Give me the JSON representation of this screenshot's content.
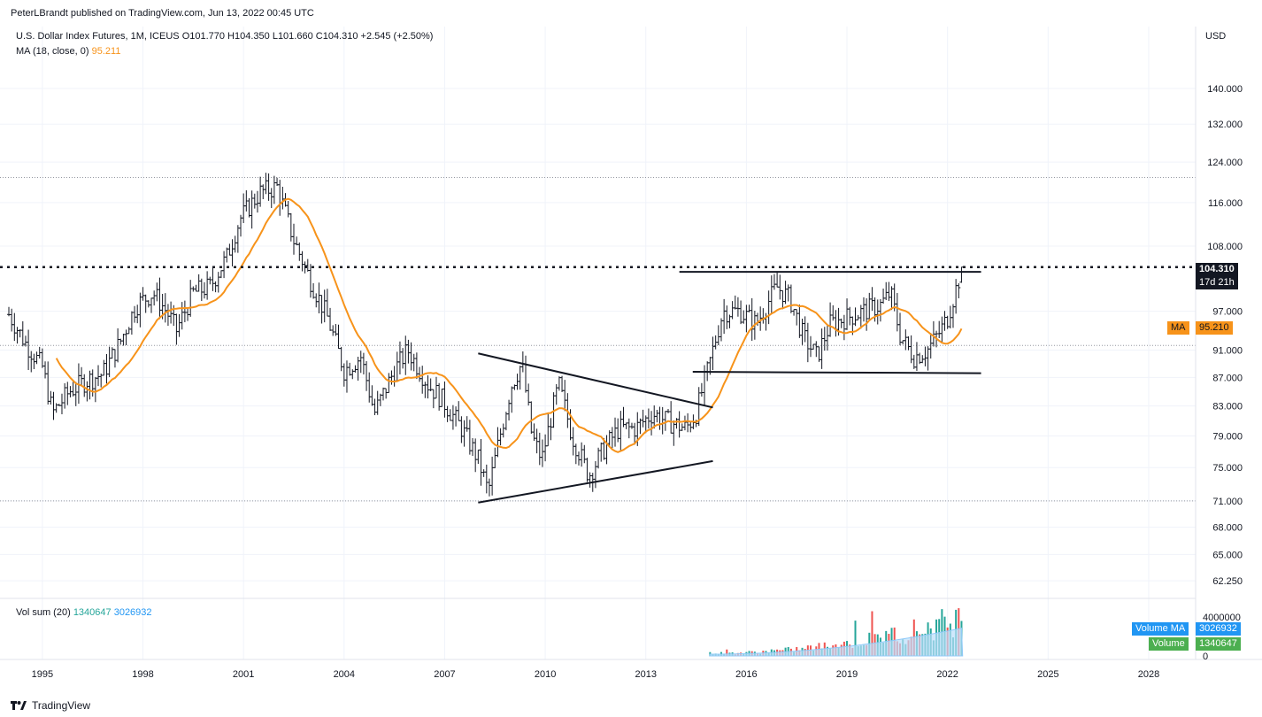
{
  "header": {
    "publisher": "PeterLBrandt published on TradingView.com, Jun 13, 2022 00:45 UTC"
  },
  "legend": {
    "symbol": "U.S. Dollar Index Futures, 1M, ICEUS",
    "ohlc": "O101.770 H104.350 L101.660 C104.310 +2.545 (+2.50%)",
    "ma_label": "MA (18, close, 0)",
    "ma_value": "95.211",
    "vol_label": "Vol sum (20)",
    "vol_value": "1340647",
    "vol_ma_value": "3026932"
  },
  "price_axis": {
    "currency": "USD",
    "ticks": [
      "140.000",
      "132.000",
      "124.000",
      "116.000",
      "108.000",
      "97.000",
      "91.000",
      "87.000",
      "83.000",
      "79.000",
      "75.000",
      "71.000",
      "68.000",
      "65.000",
      "62.250"
    ],
    "vol_ticks": [
      "4000000",
      "0"
    ]
  },
  "price_tags": {
    "last_price": "104.310",
    "countdown": "17d 21h",
    "ma_label": "MA",
    "ma_value": "95.210",
    "vol_ma_label": "Volume MA",
    "vol_ma_value": "3026932",
    "vol_label": "Volume",
    "vol_value": "1340647"
  },
  "time_axis": {
    "ticks": [
      "1995",
      "1998",
      "2001",
      "2004",
      "2007",
      "2010",
      "2013",
      "2016",
      "2019",
      "2022",
      "2025",
      "2028"
    ]
  },
  "footer": {
    "brand": "TradingView"
  },
  "colors": {
    "bar": "#131722",
    "ma": "#f7931a",
    "grid": "#f0f3fa",
    "vol_up": "#26a69a",
    "vol_down": "#ef5350",
    "vol_ma": "#2196f3"
  },
  "chart_data": {
    "type": "ohlc",
    "title": "U.S. Dollar Index Futures, 1M, ICEUS",
    "y_scale": "log",
    "ylim": [
      61,
      155
    ],
    "xlim": [
      1994.0,
      2029.4
    ],
    "close_anchors": [
      [
        1994.0,
        96.5
      ],
      [
        1994.5,
        92
      ],
      [
        1995.0,
        88.5
      ],
      [
        1995.3,
        82
      ],
      [
        1995.8,
        85
      ],
      [
        1996.3,
        86.5
      ],
      [
        1996.8,
        87.5
      ],
      [
        1997.3,
        92
      ],
      [
        1997.8,
        98
      ],
      [
        1998.3,
        100
      ],
      [
        1998.7,
        97
      ],
      [
        1999.0,
        94
      ],
      [
        1999.5,
        100
      ],
      [
        2000.0,
        101
      ],
      [
        2000.5,
        106
      ],
      [
        2000.9,
        113
      ],
      [
        2001.5,
        118
      ],
      [
        2002.0,
        119
      ],
      [
        2002.5,
        109
      ],
      [
        2003.0,
        102
      ],
      [
        2003.5,
        96
      ],
      [
        2004.0,
        88
      ],
      [
        2004.5,
        90
      ],
      [
        2004.9,
        82
      ],
      [
        2005.5,
        88
      ],
      [
        2005.9,
        91
      ],
      [
        2006.5,
        86
      ],
      [
        2006.9,
        84
      ],
      [
        2007.5,
        80
      ],
      [
        2008.0,
        76
      ],
      [
        2008.3,
        72
      ],
      [
        2008.7,
        80
      ],
      [
        2009.0,
        86
      ],
      [
        2009.3,
        89
      ],
      [
        2009.6,
        79
      ],
      [
        2009.9,
        76
      ],
      [
        2010.4,
        86
      ],
      [
        2010.8,
        79
      ],
      [
        2011.3,
        74
      ],
      [
        2011.7,
        77
      ],
      [
        2012.2,
        80
      ],
      [
        2012.7,
        80
      ],
      [
        2013.2,
        82
      ],
      [
        2013.6,
        81
      ],
      [
        2014.2,
        80
      ],
      [
        2014.5,
        82
      ],
      [
        2014.9,
        89
      ],
      [
        2015.3,
        97
      ],
      [
        2015.8,
        97
      ],
      [
        2016.3,
        95
      ],
      [
        2016.9,
        101
      ],
      [
        2017.3,
        99
      ],
      [
        2017.7,
        93
      ],
      [
        2018.1,
        90
      ],
      [
        2018.5,
        95
      ],
      [
        2019.0,
        96
      ],
      [
        2019.5,
        97
      ],
      [
        2020.0,
        98
      ],
      [
        2020.3,
        100
      ],
      [
        2020.6,
        93
      ],
      [
        2021.0,
        90
      ],
      [
        2021.4,
        91
      ],
      [
        2021.8,
        94
      ],
      [
        2022.0,
        96
      ],
      [
        2022.45,
        104.31
      ]
    ],
    "ma": {
      "period": 18,
      "last": 95.211
    },
    "volume": {
      "sum20": 1340647,
      "ma": 3026932,
      "start_year": 2014.9
    },
    "drawings": [
      {
        "type": "horizontal",
        "style": "dotted",
        "price": 104.31,
        "note": "current price line"
      },
      {
        "type": "trendline",
        "from": [
          2008.0,
          90.5
        ],
        "to": [
          2015.0,
          82.8
        ]
      },
      {
        "type": "trendline",
        "from": [
          2008.0,
          70.8
        ],
        "to": [
          2015.0,
          75.8
        ]
      },
      {
        "type": "trendline",
        "from": [
          2014.0,
          103.5
        ],
        "to": [
          2023.0,
          103.5
        ]
      },
      {
        "type": "trendline",
        "from": [
          2014.4,
          87.8
        ],
        "to": [
          2023.0,
          87.6
        ]
      }
    ],
    "ref_levels": [
      120.9,
      91.7,
      71.0
    ]
  }
}
